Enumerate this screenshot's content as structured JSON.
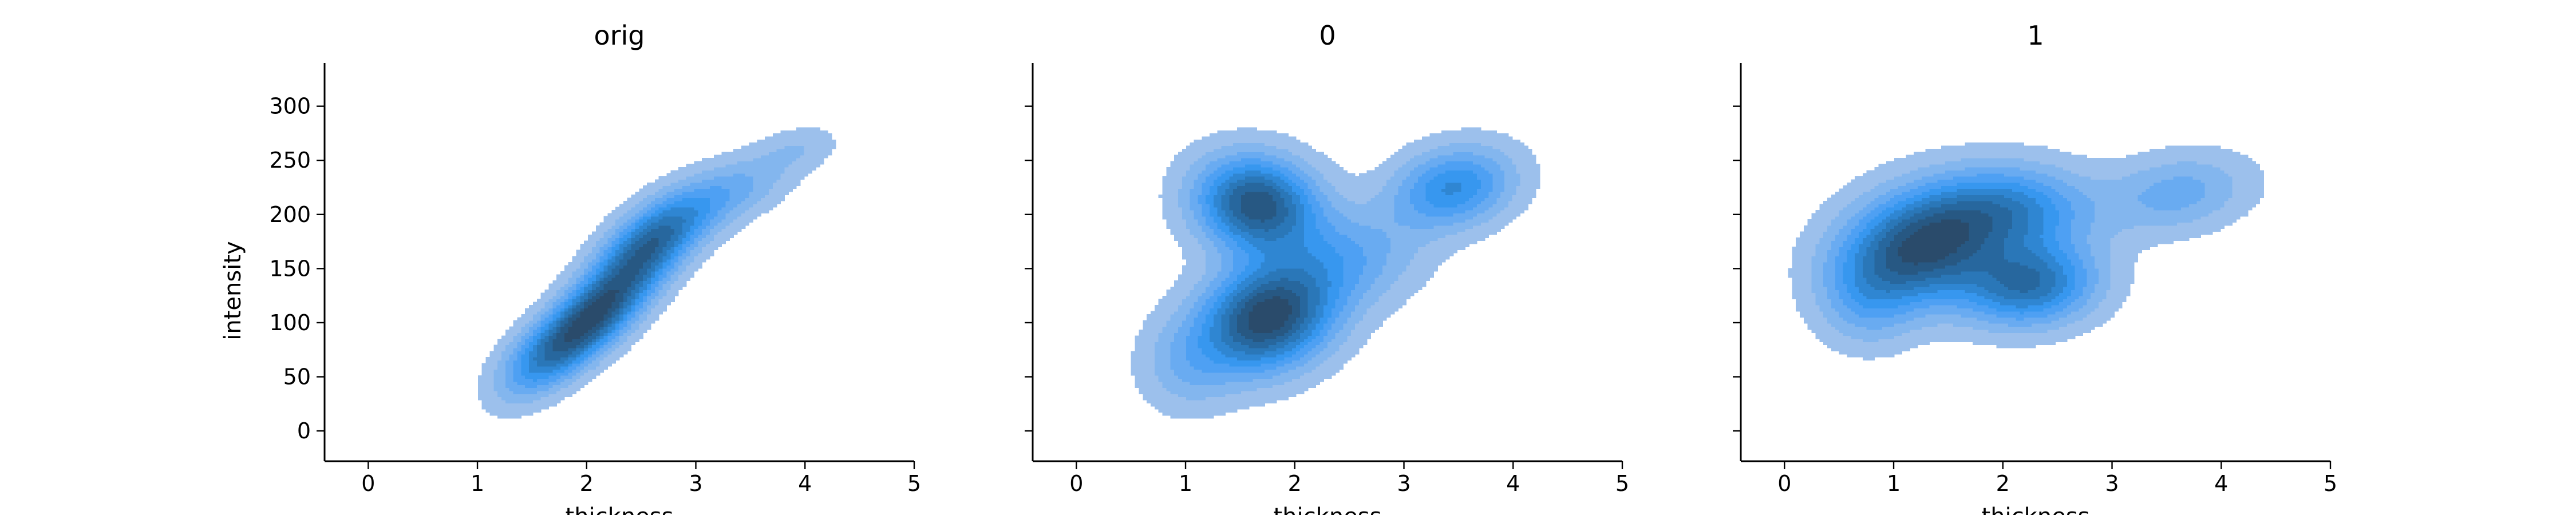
{
  "chart_data": [
    {
      "type": "kde",
      "title": "orig",
      "xlabel": "thickness",
      "ylabel": "intensity",
      "xlim": [
        -0.4,
        5
      ],
      "ylim": [
        -28,
        340
      ],
      "xticks": [
        0,
        1,
        2,
        3,
        4,
        5
      ],
      "yticks": [
        0,
        50,
        100,
        150,
        200,
        250,
        300
      ],
      "grid": false,
      "density": {
        "peaks": [
          {
            "x": 2.05,
            "y": 105,
            "weight": 1.0,
            "sx": 0.36,
            "sy": 34,
            "rho": 0.7
          },
          {
            "x": 2.6,
            "y": 175,
            "weight": 0.75,
            "sx": 0.34,
            "sy": 30,
            "rho": 0.6
          },
          {
            "x": 1.55,
            "y": 65,
            "weight": 0.35,
            "sx": 0.28,
            "sy": 26,
            "rho": 0.5
          },
          {
            "x": 3.3,
            "y": 220,
            "weight": 0.3,
            "sx": 0.4,
            "sy": 25,
            "rho": 0.6
          },
          {
            "x": 3.95,
            "y": 262,
            "weight": 0.12,
            "sx": 0.25,
            "sy": 14,
            "rho": 0.3
          }
        ]
      }
    },
    {
      "type": "kde",
      "title": "0",
      "xlabel": "thickness",
      "ylabel": "",
      "xlim": [
        -0.4,
        5
      ],
      "ylim": [
        -28,
        340
      ],
      "xticks": [
        0,
        1,
        2,
        3,
        4,
        5
      ],
      "yticks": [
        0,
        50,
        100,
        150,
        200,
        250,
        300
      ],
      "grid": false,
      "density": {
        "peaks": [
          {
            "x": 1.75,
            "y": 105,
            "weight": 1.0,
            "sx": 0.42,
            "sy": 34,
            "rho": 0.2
          },
          {
            "x": 1.65,
            "y": 210,
            "weight": 0.9,
            "sx": 0.38,
            "sy": 30,
            "rho": -0.1
          },
          {
            "x": 3.45,
            "y": 225,
            "weight": 0.55,
            "sx": 0.38,
            "sy": 26,
            "rho": 0.2
          },
          {
            "x": 2.5,
            "y": 160,
            "weight": 0.3,
            "sx": 0.45,
            "sy": 30,
            "rho": 0.1
          },
          {
            "x": 1.0,
            "y": 60,
            "weight": 0.2,
            "sx": 0.3,
            "sy": 30,
            "rho": 0.0
          }
        ]
      }
    },
    {
      "type": "kde",
      "title": "1",
      "xlabel": "thickness",
      "ylabel": "",
      "xlim": [
        -0.4,
        5
      ],
      "ylim": [
        -28,
        340
      ],
      "xticks": [
        0,
        1,
        2,
        3,
        4,
        5
      ],
      "yticks": [
        0,
        50,
        100,
        150,
        200,
        250,
        300
      ],
      "grid": false,
      "density": {
        "peaks": [
          {
            "x": 1.25,
            "y": 170,
            "weight": 1.0,
            "sx": 0.5,
            "sy": 36,
            "rho": 0.2
          },
          {
            "x": 2.25,
            "y": 135,
            "weight": 0.75,
            "sx": 0.42,
            "sy": 26,
            "rho": 0.1
          },
          {
            "x": 2.1,
            "y": 205,
            "weight": 0.55,
            "sx": 0.5,
            "sy": 28,
            "rho": 0.0
          },
          {
            "x": 3.6,
            "y": 220,
            "weight": 0.32,
            "sx": 0.45,
            "sy": 25,
            "rho": 0.2
          },
          {
            "x": 0.75,
            "y": 120,
            "weight": 0.25,
            "sx": 0.3,
            "sy": 30,
            "rho": 0.0
          }
        ]
      }
    }
  ],
  "colors": {
    "levels": [
      "#9cc0ec",
      "#83b6ee",
      "#69abf1",
      "#4ea0f3",
      "#3797ef",
      "#2f86d2",
      "#2a77b8",
      "#27679e",
      "#275883",
      "#2a4b6b"
    ],
    "axis": "#000000"
  }
}
